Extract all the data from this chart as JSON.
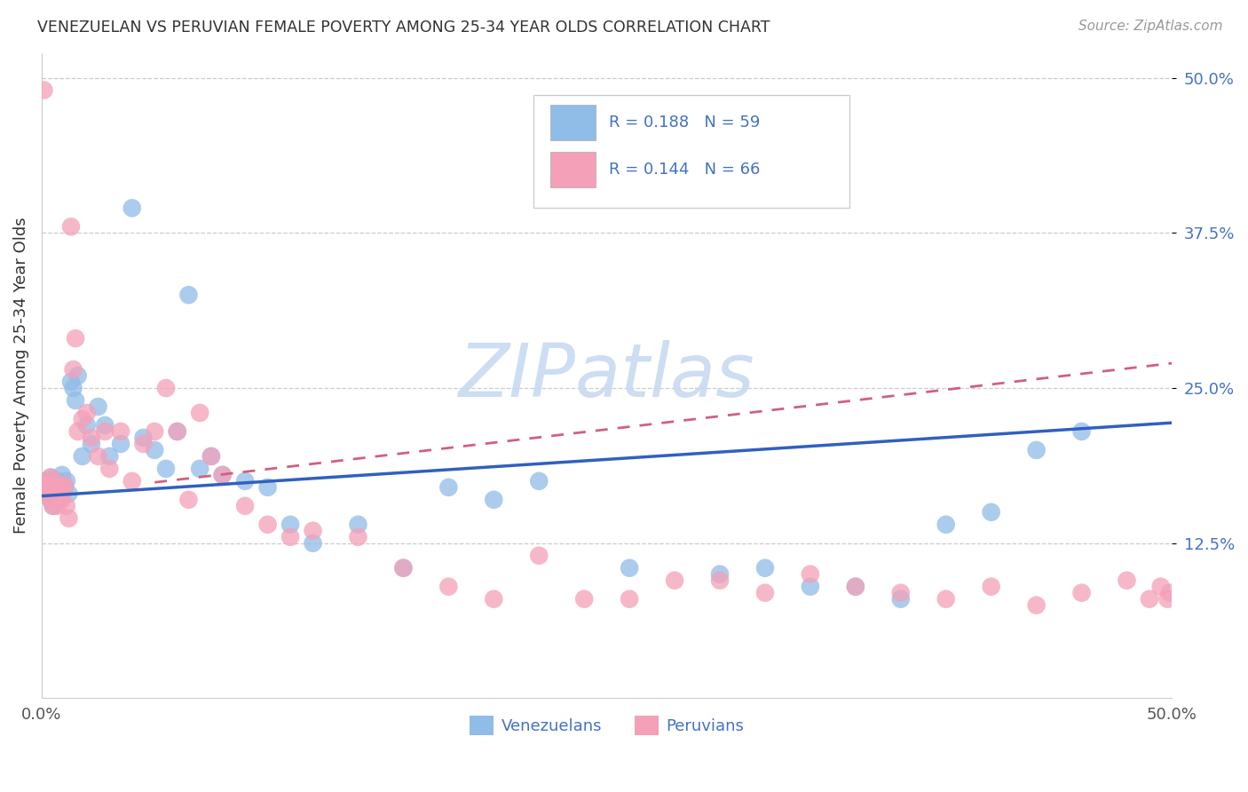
{
  "title": "VENEZUELAN VS PERUVIAN FEMALE POVERTY AMONG 25-34 YEAR OLDS CORRELATION CHART",
  "source": "Source: ZipAtlas.com",
  "ylabel": "Female Poverty Among 25-34 Year Olds",
  "xlim": [
    0.0,
    0.5
  ],
  "ylim": [
    0.0,
    0.52
  ],
  "yticks": [
    0.125,
    0.25,
    0.375,
    0.5
  ],
  "ytick_labels": [
    "12.5%",
    "25.0%",
    "37.5%",
    "50.0%"
  ],
  "venezuelan_color": "#90bce8",
  "peruvian_color": "#f4a0b8",
  "venezuelan_line_color": "#3060c0",
  "peruvian_line_color": "#d06080",
  "venezuelan_x": [
    0.001,
    0.002,
    0.002,
    0.003,
    0.003,
    0.004,
    0.004,
    0.005,
    0.005,
    0.006,
    0.006,
    0.007,
    0.007,
    0.008,
    0.008,
    0.009,
    0.01,
    0.01,
    0.011,
    0.012,
    0.013,
    0.014,
    0.015,
    0.016,
    0.018,
    0.02,
    0.022,
    0.025,
    0.028,
    0.03,
    0.035,
    0.04,
    0.045,
    0.05,
    0.055,
    0.06,
    0.065,
    0.07,
    0.075,
    0.08,
    0.09,
    0.1,
    0.11,
    0.12,
    0.14,
    0.16,
    0.18,
    0.2,
    0.22,
    0.26,
    0.3,
    0.32,
    0.34,
    0.36,
    0.38,
    0.4,
    0.42,
    0.44,
    0.46
  ],
  "venezuelan_y": [
    0.17,
    0.165,
    0.175,
    0.168,
    0.172,
    0.16,
    0.178,
    0.155,
    0.175,
    0.172,
    0.168,
    0.165,
    0.175,
    0.162,
    0.17,
    0.18,
    0.168,
    0.172,
    0.175,
    0.165,
    0.255,
    0.25,
    0.24,
    0.26,
    0.195,
    0.22,
    0.205,
    0.235,
    0.22,
    0.195,
    0.205,
    0.395,
    0.21,
    0.2,
    0.185,
    0.215,
    0.325,
    0.185,
    0.195,
    0.18,
    0.175,
    0.17,
    0.14,
    0.125,
    0.14,
    0.105,
    0.17,
    0.16,
    0.175,
    0.105,
    0.1,
    0.105,
    0.09,
    0.09,
    0.08,
    0.14,
    0.15,
    0.2,
    0.215
  ],
  "peruvian_x": [
    0.001,
    0.002,
    0.002,
    0.003,
    0.003,
    0.004,
    0.004,
    0.005,
    0.005,
    0.006,
    0.006,
    0.007,
    0.007,
    0.008,
    0.008,
    0.009,
    0.01,
    0.01,
    0.011,
    0.012,
    0.013,
    0.014,
    0.015,
    0.016,
    0.018,
    0.02,
    0.022,
    0.025,
    0.028,
    0.03,
    0.035,
    0.04,
    0.045,
    0.05,
    0.055,
    0.06,
    0.065,
    0.07,
    0.075,
    0.08,
    0.09,
    0.1,
    0.11,
    0.12,
    0.14,
    0.16,
    0.18,
    0.2,
    0.22,
    0.24,
    0.26,
    0.28,
    0.3,
    0.32,
    0.34,
    0.36,
    0.38,
    0.4,
    0.42,
    0.44,
    0.46,
    0.48,
    0.49,
    0.495,
    0.498,
    0.499
  ],
  "peruvian_y": [
    0.49,
    0.165,
    0.175,
    0.168,
    0.172,
    0.16,
    0.178,
    0.155,
    0.175,
    0.172,
    0.168,
    0.165,
    0.155,
    0.162,
    0.17,
    0.16,
    0.168,
    0.172,
    0.155,
    0.145,
    0.38,
    0.265,
    0.29,
    0.215,
    0.225,
    0.23,
    0.21,
    0.195,
    0.215,
    0.185,
    0.215,
    0.175,
    0.205,
    0.215,
    0.25,
    0.215,
    0.16,
    0.23,
    0.195,
    0.18,
    0.155,
    0.14,
    0.13,
    0.135,
    0.13,
    0.105,
    0.09,
    0.08,
    0.115,
    0.08,
    0.08,
    0.095,
    0.095,
    0.085,
    0.1,
    0.09,
    0.085,
    0.08,
    0.09,
    0.075,
    0.085,
    0.095,
    0.08,
    0.09,
    0.08,
    0.085
  ],
  "ven_line_x": [
    0.0,
    0.5
  ],
  "ven_line_y": [
    0.163,
    0.222
  ],
  "per_line_x": [
    0.05,
    0.5
  ],
  "per_line_y": [
    0.174,
    0.27
  ],
  "watermark_text": "ZIPatlas",
  "watermark_color": "#c5d8f0",
  "legend_r1": "R = 0.188   N = 59",
  "legend_r2": "R = 0.144   N = 66",
  "legend_color": "#4472c4"
}
